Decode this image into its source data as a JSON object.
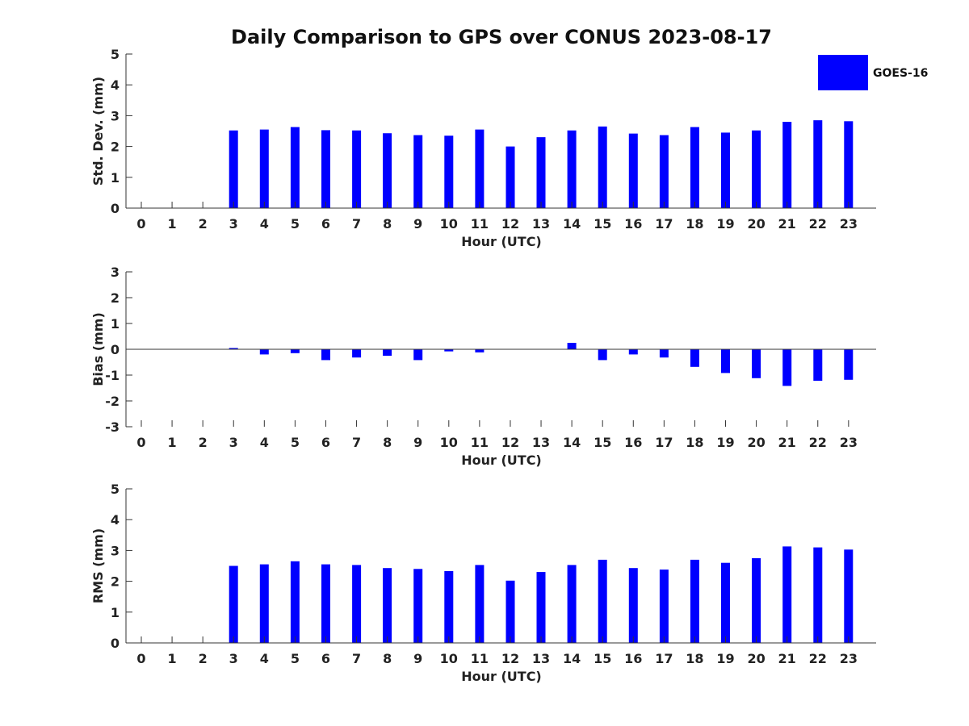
{
  "chart_data": {
    "title": "Daily Comparison to GPS over CONUS 2023-08-17",
    "type": "bar",
    "legend": {
      "position": "top-right",
      "entries": [
        {
          "label": "GOES-16",
          "color": "#0000ff"
        }
      ]
    },
    "color": "#0000ff",
    "categories": [
      "0",
      "1",
      "2",
      "3",
      "4",
      "5",
      "6",
      "7",
      "8",
      "9",
      "10",
      "11",
      "12",
      "13",
      "14",
      "15",
      "16",
      "17",
      "18",
      "19",
      "20",
      "21",
      "22",
      "23"
    ],
    "panels": [
      {
        "name": "std-dev",
        "ylabel": "Std. Dev. (mm)",
        "xlabel": "Hour (UTC)",
        "ylim": [
          0,
          5
        ],
        "yticks": [
          "0",
          "1",
          "2",
          "3",
          "4",
          "5"
        ],
        "values": [
          null,
          null,
          null,
          2.52,
          2.55,
          2.63,
          2.53,
          2.52,
          2.43,
          2.37,
          2.35,
          2.55,
          2.0,
          2.3,
          2.52,
          2.65,
          2.42,
          2.37,
          2.63,
          2.45,
          2.52,
          2.8,
          2.85,
          2.82
        ]
      },
      {
        "name": "bias",
        "ylabel": "Bias (mm)",
        "xlabel": "Hour (UTC)",
        "ylim": [
          -3,
          3
        ],
        "yticks": [
          "-3",
          "-2",
          "-1",
          "0",
          "1",
          "2",
          "3"
        ],
        "values": [
          null,
          null,
          null,
          0.05,
          -0.2,
          -0.15,
          -0.42,
          -0.32,
          -0.25,
          -0.42,
          -0.08,
          -0.12,
          0,
          0,
          0.25,
          -0.42,
          -0.2,
          -0.32,
          -0.68,
          -0.92,
          -1.12,
          -1.42,
          -1.22,
          -1.18
        ]
      },
      {
        "name": "rms",
        "ylabel": "RMS (mm)",
        "xlabel": "Hour (UTC)",
        "ylim": [
          0,
          5
        ],
        "yticks": [
          "0",
          "1",
          "2",
          "3",
          "4",
          "5"
        ],
        "values": [
          null,
          null,
          null,
          2.5,
          2.55,
          2.65,
          2.55,
          2.53,
          2.43,
          2.4,
          2.33,
          2.53,
          2.02,
          2.3,
          2.53,
          2.7,
          2.43,
          2.38,
          2.7,
          2.6,
          2.75,
          3.13,
          3.1,
          3.03
        ]
      }
    ]
  }
}
